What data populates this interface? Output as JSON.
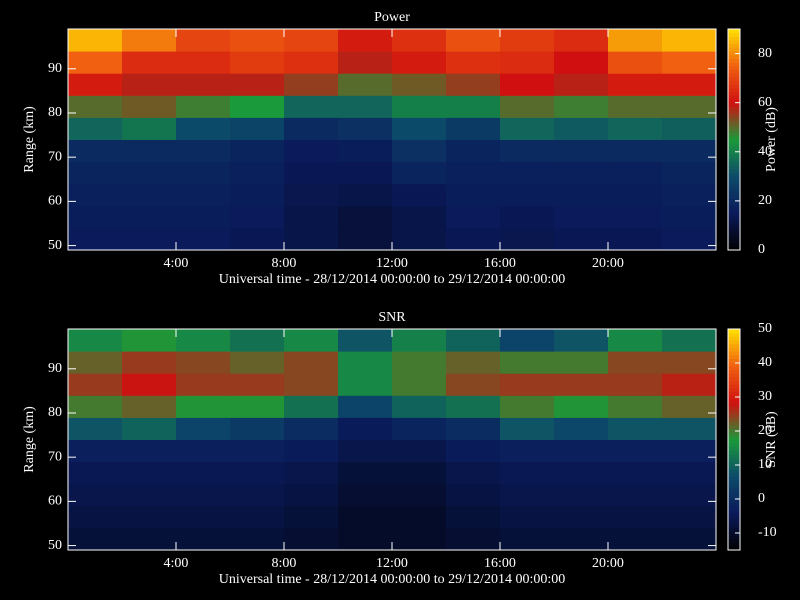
{
  "chart_data": [
    {
      "type": "heatmap",
      "title": "Power",
      "xlabel": "Universal time - 28/12/2014 00:00:00 to 29/12/2014 00:00:00",
      "ylabel": "Range (km)",
      "colorbar_label": "Power (dB)",
      "xlim": [
        0,
        24
      ],
      "ylim": [
        49,
        99
      ],
      "xticks": [
        {
          "value": 4,
          "label": "4:00"
        },
        {
          "value": 8,
          "label": "8:00"
        },
        {
          "value": 12,
          "label": "12:00"
        },
        {
          "value": 16,
          "label": "16:00"
        },
        {
          "value": 20,
          "label": "20:00"
        }
      ],
      "yticks": [
        50,
        60,
        70,
        80,
        90
      ],
      "clim": [
        0,
        90
      ],
      "cticks": [
        0,
        20,
        40,
        60,
        80
      ],
      "colormap": [
        "#000000",
        "#0a1a5a",
        "#0c4a6a",
        "#1a9a3a",
        "#d01010",
        "#f06010",
        "#ffe000"
      ],
      "xbins": [
        0,
        2,
        4,
        6,
        8,
        10,
        12,
        14,
        16,
        18,
        20,
        22,
        24
      ],
      "ybins": [
        49,
        54,
        59,
        64,
        69,
        74,
        79,
        84,
        89,
        94,
        99
      ],
      "values": [
        [
          15,
          15,
          15,
          14,
          12,
          10,
          12,
          14,
          13,
          14,
          14,
          15
        ],
        [
          16,
          16,
          16,
          15,
          12,
          10,
          12,
          15,
          14,
          15,
          15,
          16
        ],
        [
          17,
          17,
          17,
          16,
          13,
          12,
          14,
          16,
          16,
          16,
          16,
          17
        ],
        [
          18,
          18,
          18,
          17,
          14,
          14,
          18,
          17,
          17,
          17,
          17,
          18
        ],
        [
          20,
          20,
          20,
          18,
          15,
          16,
          22,
          18,
          20,
          20,
          20,
          20
        ],
        [
          35,
          38,
          30,
          28,
          20,
          22,
          30,
          25,
          35,
          33,
          35,
          34
        ],
        [
          50,
          52,
          48,
          45,
          35,
          35,
          40,
          40,
          50,
          48,
          50,
          50
        ],
        [
          62,
          58,
          58,
          58,
          55,
          50,
          52,
          55,
          60,
          58,
          62,
          62
        ],
        [
          75,
          65,
          65,
          68,
          66,
          58,
          62,
          66,
          65,
          60,
          72,
          75
        ],
        [
          85,
          78,
          70,
          72,
          70,
          62,
          66,
          72,
          68,
          65,
          82,
          85
        ]
      ]
    },
    {
      "type": "heatmap",
      "title": "SNR",
      "xlabel": "Universal time - 28/12/2014 00:00:00 to 29/12/2014 00:00:00",
      "ylabel": "Range (km)",
      "colorbar_label": "SNR (dB)",
      "xlim": [
        0,
        24
      ],
      "ylim": [
        49,
        99
      ],
      "xticks": [
        {
          "value": 4,
          "label": "4:00"
        },
        {
          "value": 8,
          "label": "8:00"
        },
        {
          "value": 12,
          "label": "12:00"
        },
        {
          "value": 16,
          "label": "16:00"
        },
        {
          "value": 20,
          "label": "20:00"
        }
      ],
      "yticks": [
        50,
        60,
        70,
        80,
        90
      ],
      "clim": [
        -15,
        50
      ],
      "cticks": [
        -10,
        0,
        10,
        20,
        30,
        40,
        50
      ],
      "colormap": [
        "#000000",
        "#0a1a5a",
        "#0c4a6a",
        "#1a9a3a",
        "#d01010",
        "#f06010",
        "#ffe000"
      ],
      "xbins": [
        0,
        2,
        4,
        6,
        8,
        10,
        12,
        14,
        16,
        18,
        20,
        22,
        24
      ],
      "ybins": [
        49,
        54,
        59,
        64,
        69,
        74,
        79,
        84,
        89,
        94,
        99
      ],
      "values": [
        [
          -8,
          -8,
          -8,
          -8,
          -9,
          -10,
          -10,
          -9,
          -8,
          -8,
          -8,
          -8
        ],
        [
          -7,
          -7,
          -7,
          -7,
          -8,
          -10,
          -10,
          -8,
          -7,
          -7,
          -7,
          -7
        ],
        [
          -6,
          -6,
          -6,
          -6,
          -7,
          -9,
          -9,
          -7,
          -6,
          -6,
          -6,
          -6
        ],
        [
          -5,
          -5,
          -5,
          -5,
          -6,
          -8,
          -8,
          -6,
          -5,
          -5,
          -5,
          -5
        ],
        [
          -3,
          -3,
          -3,
          -3,
          -4,
          -6,
          -6,
          -4,
          -3,
          -3,
          -3,
          -3
        ],
        [
          8,
          10,
          5,
          3,
          0,
          -4,
          -2,
          0,
          8,
          6,
          8,
          8
        ],
        [
          20,
          22,
          18,
          18,
          12,
          5,
          10,
          12,
          20,
          18,
          20,
          22
        ],
        [
          25,
          28,
          25,
          25,
          24,
          15,
          20,
          24,
          25,
          25,
          25,
          27
        ],
        [
          22,
          25,
          24,
          22,
          24,
          15,
          20,
          22,
          20,
          20,
          24,
          24
        ],
        [
          15,
          18,
          15,
          12,
          15,
          8,
          14,
          10,
          5,
          8,
          15,
          12
        ]
      ]
    }
  ]
}
